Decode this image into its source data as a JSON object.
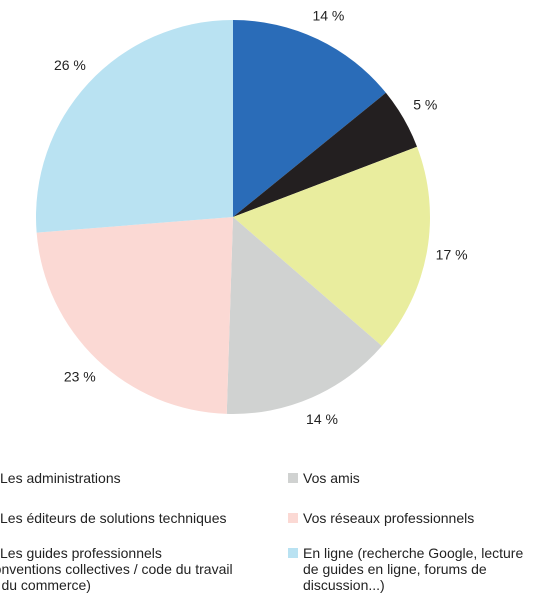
{
  "chart_data": {
    "type": "pie",
    "categories": [
      "Les administrations",
      "Les éditeurs de solutions techniques",
      "Les guides professionnels (conventions collectives / code du travail ou du commerce)",
      "Vos amis",
      "Vos réseaux professionnels",
      "En ligne (recherche Google, lecture de guides en ligne, forums de discussion...)"
    ],
    "values": [
      14,
      5,
      17,
      14,
      23,
      26
    ],
    "value_labels": [
      "14 %",
      "5 %",
      "17 %",
      "14 %",
      "23 %",
      "26 %"
    ],
    "colors": [
      "#2a6cb8",
      "#231f20",
      "#e9ed9e",
      "#d0d2d1",
      "#fbd9d4",
      "#b9e2f2"
    ]
  }
}
